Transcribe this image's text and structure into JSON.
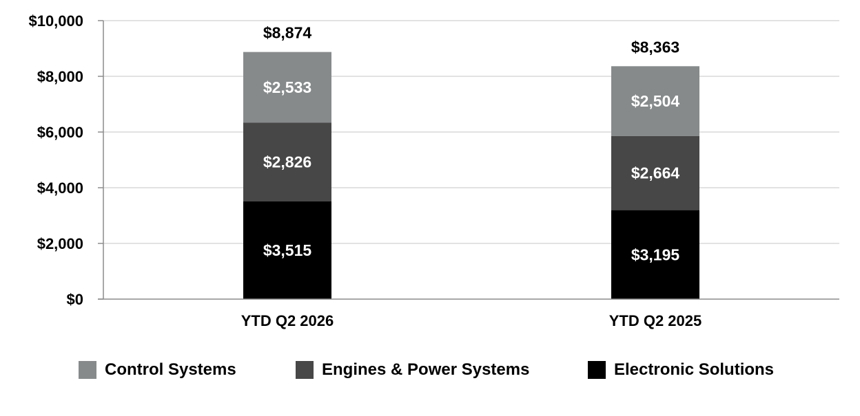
{
  "chart_data": {
    "type": "bar",
    "stacked": true,
    "categories": [
      "YTD Q2 2026",
      "YTD Q2 2025"
    ],
    "series": [
      {
        "name": "Electronic Solutions",
        "values": [
          3515,
          3195
        ],
        "labels": [
          "$3,515",
          "$3,195"
        ],
        "color": "#000000"
      },
      {
        "name": "Engines & Power Systems",
        "values": [
          2826,
          2664
        ],
        "labels": [
          "$2,826",
          "$2,664"
        ],
        "color": "#474747"
      },
      {
        "name": "Control Systems",
        "values": [
          2533,
          2504
        ],
        "labels": [
          "$2,533",
          "$2,504"
        ],
        "color": "#878a8b"
      }
    ],
    "totals": [
      8874,
      8363
    ],
    "total_labels": [
      "$8,874",
      "$8,363"
    ],
    "ylim": [
      0,
      10000
    ],
    "yticks": [
      0,
      2000,
      4000,
      6000,
      8000,
      10000
    ],
    "ytick_labels": [
      "$0",
      "$2,000",
      "$4,000",
      "$6,000",
      "$8,000",
      "$10,000"
    ],
    "grid": true,
    "legend_position": "bottom",
    "legend_order": [
      "Control Systems",
      "Engines & Power Systems",
      "Electronic Solutions"
    ],
    "title": "",
    "xlabel": "",
    "ylabel": ""
  }
}
